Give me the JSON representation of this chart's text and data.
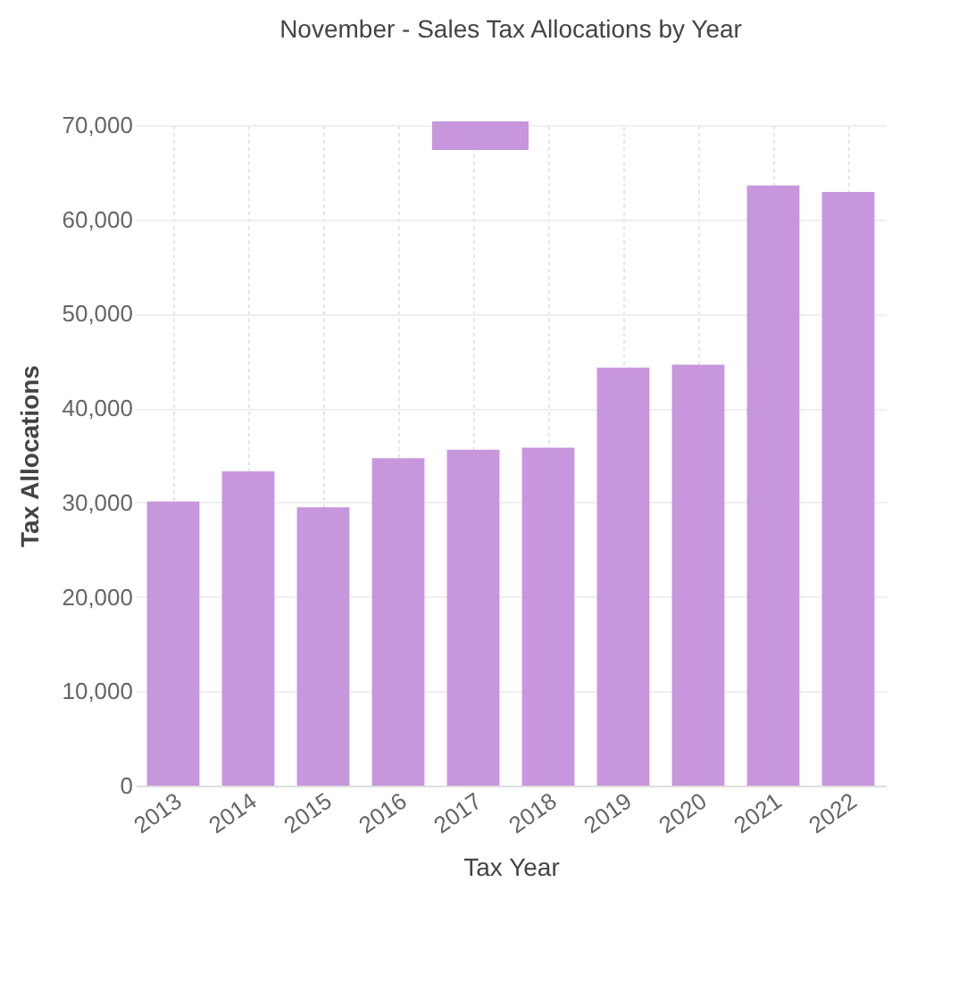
{
  "chart_data": {
    "type": "bar",
    "title": "November - Sales Tax Allocations by Year",
    "xlabel": "Tax Year",
    "ylabel": "Tax Allocations",
    "categories": [
      "2013",
      "2014",
      "2015",
      "2016",
      "2017",
      "2018",
      "2019",
      "2020",
      "2021",
      "2022"
    ],
    "series": [
      {
        "color": "#c796dc",
        "values": [
          30100,
          33300,
          29500,
          34700,
          35600,
          35800,
          44300,
          44600,
          63600,
          62900
        ]
      }
    ],
    "ylim": [
      0,
      70000
    ],
    "yticks": [
      0,
      {
        "value": 10000,
        "label": "10,000"
      },
      {
        "value": 20000,
        "label": "20,000"
      },
      {
        "value": 30000,
        "label": "30,000"
      },
      {
        "value": 40000,
        "label": "40,000"
      },
      {
        "value": 50000,
        "label": "50,000"
      },
      {
        "value": 60000,
        "label": "60,000"
      },
      {
        "value": 70000,
        "label": "70,000"
      }
    ],
    "grid": true
  }
}
